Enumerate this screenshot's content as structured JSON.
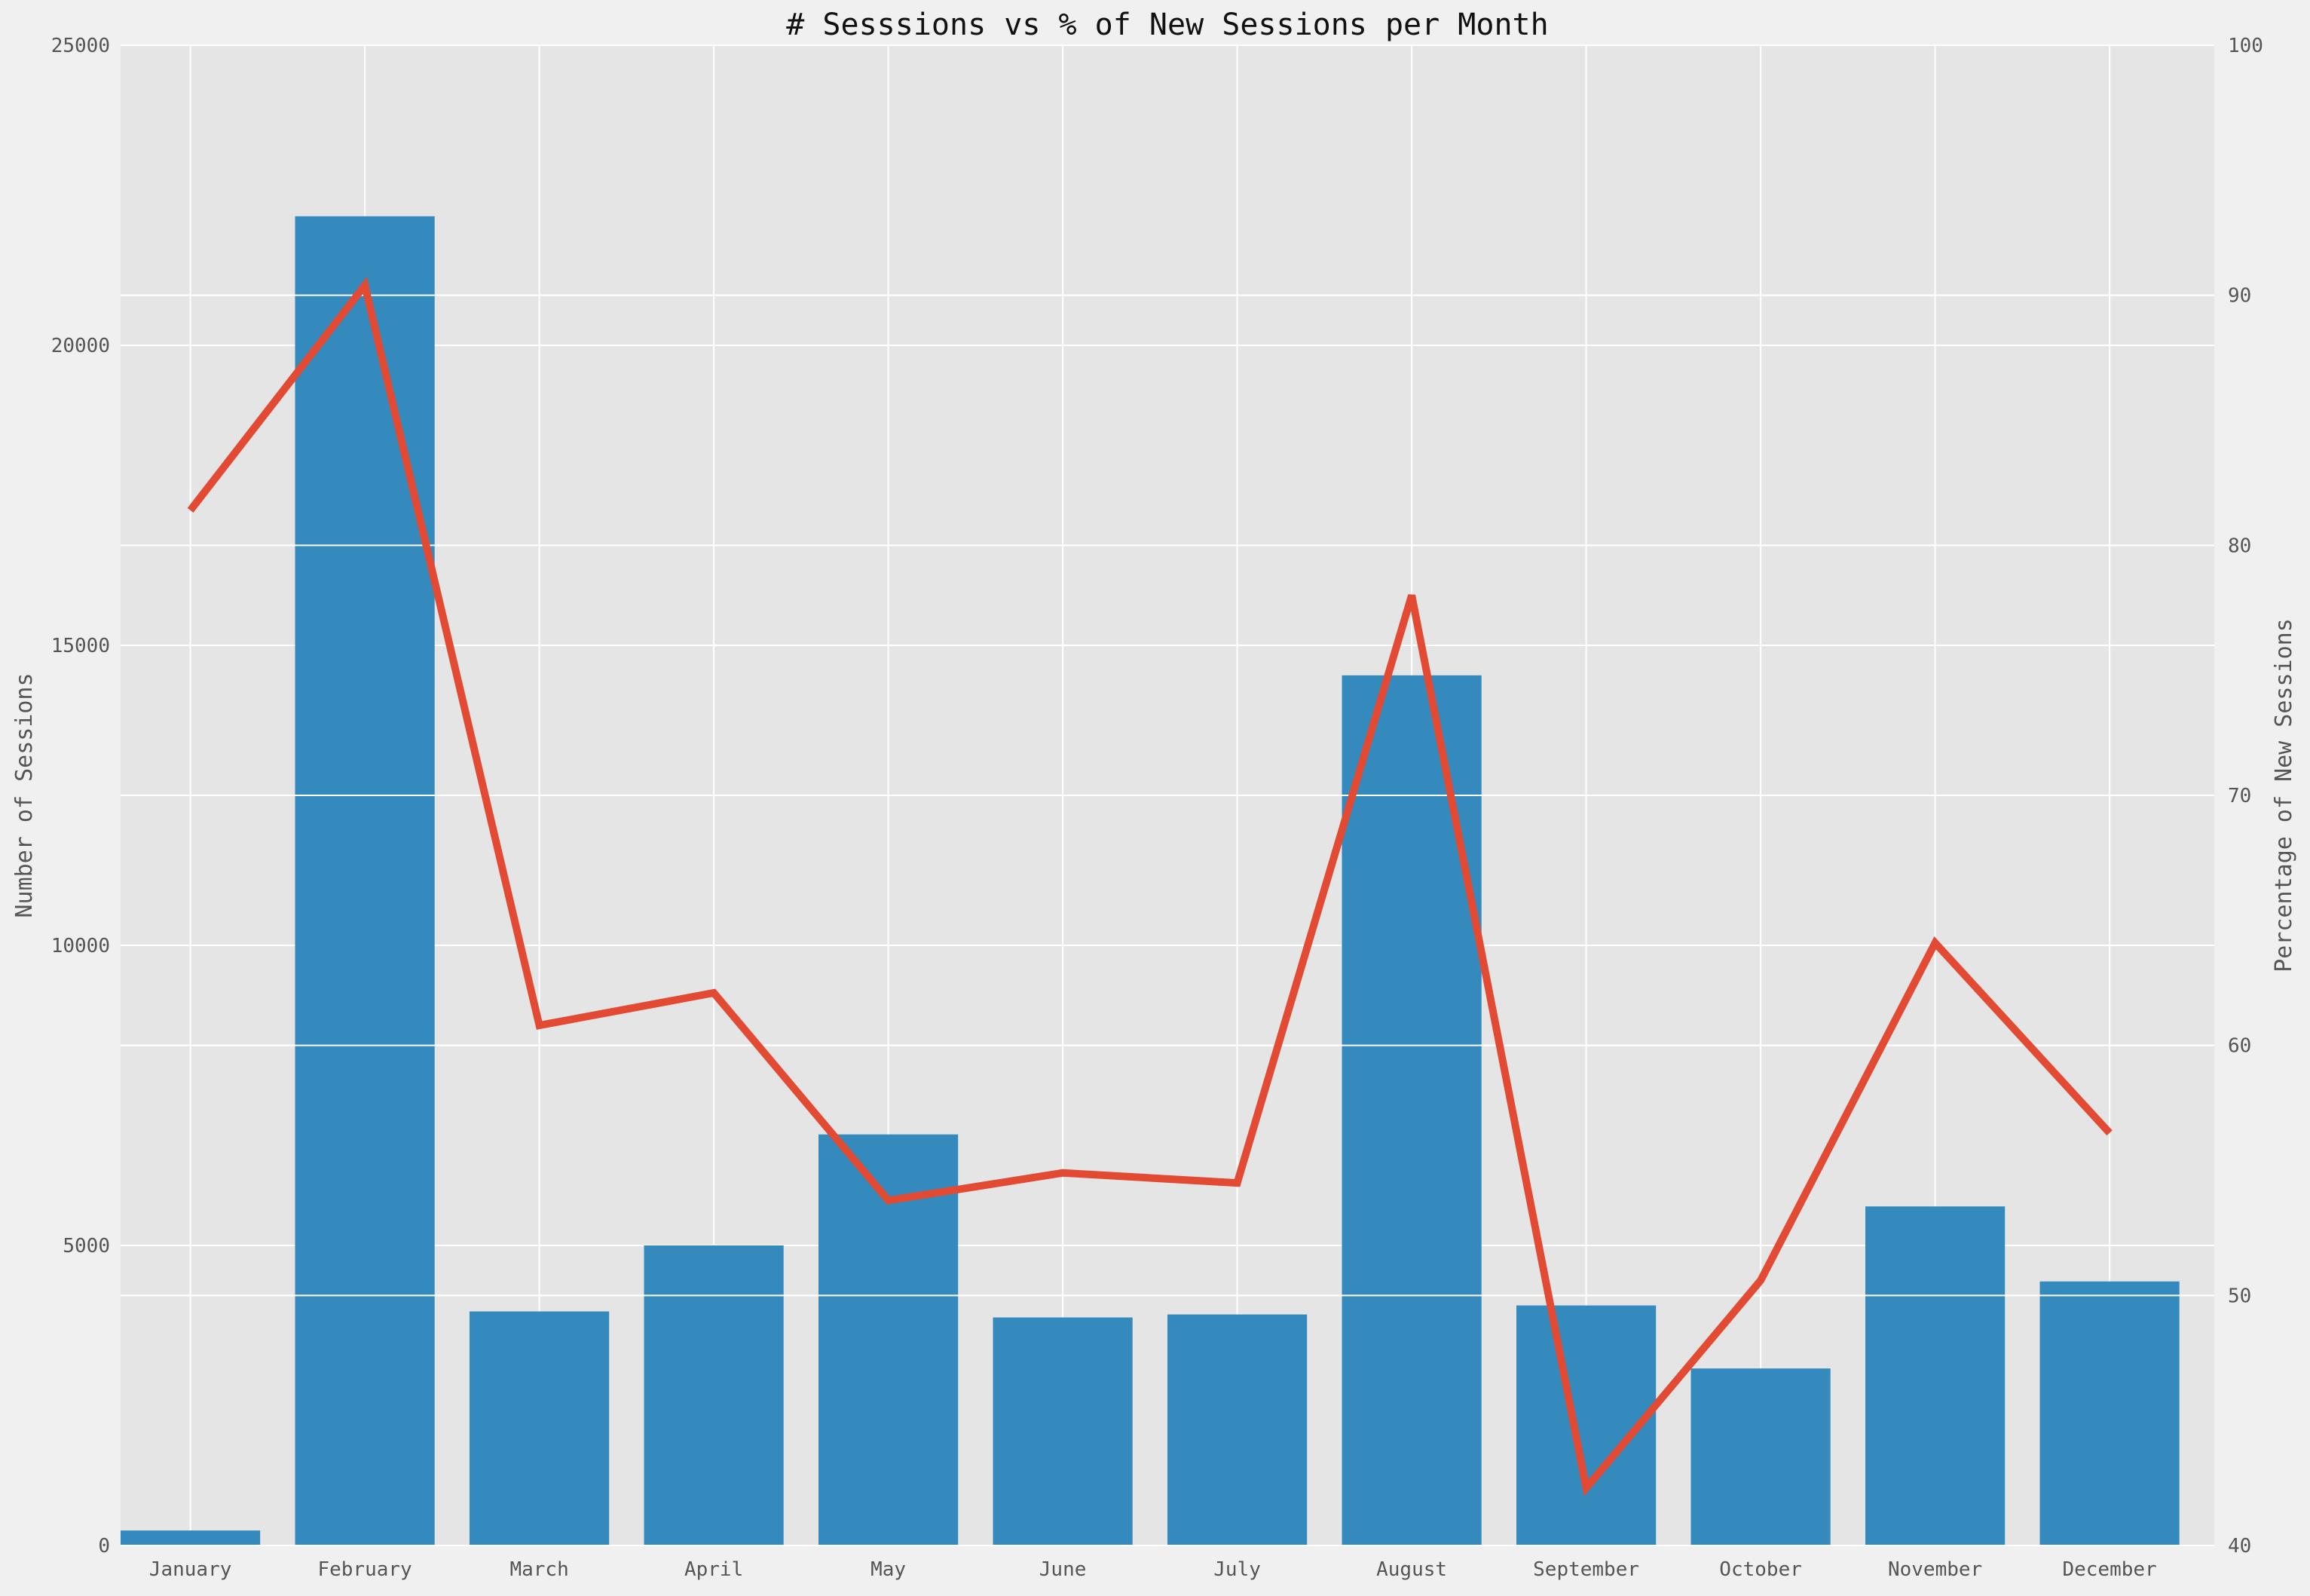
{
  "chart_data": {
    "type": "bar",
    "title": "# Sesssions vs % of New Sessions per Month",
    "categories": [
      "January",
      "February",
      "March",
      "April",
      "May",
      "June",
      "July",
      "August",
      "September",
      "October",
      "November",
      "December"
    ],
    "series": [
      {
        "type": "bar",
        "axis": "left",
        "values": [
          250,
          22150,
          3900,
          5000,
          6850,
          3800,
          3850,
          14500,
          4000,
          2950,
          5650,
          4400
        ]
      },
      {
        "type": "line",
        "axis": "right",
        "values": [
          81.4,
          90.4,
          60.8,
          62.1,
          53.8,
          54.9,
          54.5,
          78.0,
          42.3,
          50.6,
          64.1,
          56.5
        ]
      }
    ],
    "ylabel": "Number of Sessions",
    "y2label": "Percentage of New Sessions",
    "ylim": [
      0,
      25000
    ],
    "y2lim": [
      40,
      100
    ],
    "yticks": [
      0,
      5000,
      10000,
      15000,
      20000,
      25000
    ],
    "y2ticks": [
      40,
      50,
      60,
      70,
      80,
      90,
      100
    ],
    "grid": true,
    "colors": {
      "bars": "#348abd",
      "line": "#e24a33",
      "plot_background": "#e5e5e5",
      "grid": "#ffffff",
      "figure_background": "#f0f0f0"
    }
  }
}
